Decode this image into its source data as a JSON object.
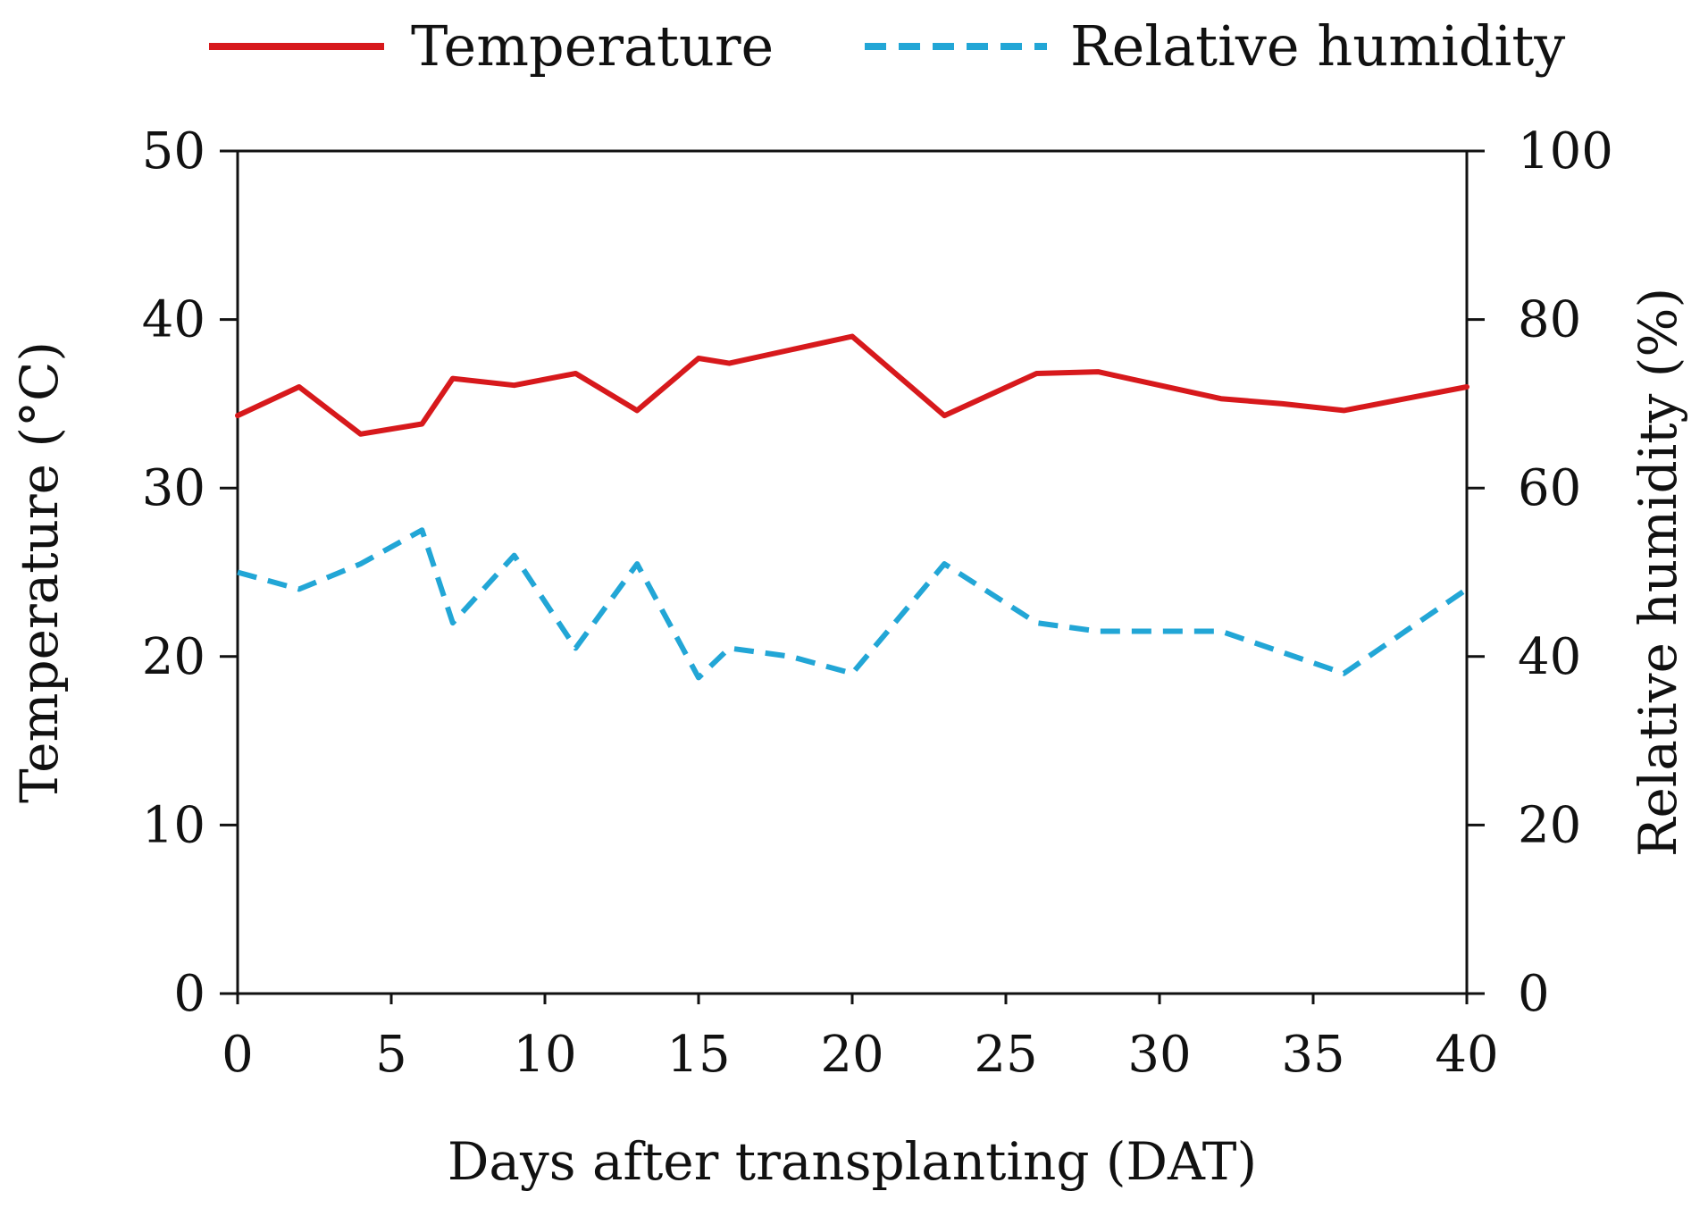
{
  "chart_data": {
    "type": "line",
    "title": "",
    "xlabel": "Days after transplanting (DAT)",
    "ylabel_left": "Temperature (°C)",
    "ylabel_right": "Relative humidity (%)",
    "xlim": [
      0,
      40
    ],
    "ylim_left": [
      0,
      50
    ],
    "ylim_right": [
      0,
      100
    ],
    "x_ticks": [
      0,
      5,
      10,
      15,
      20,
      25,
      30,
      35,
      40
    ],
    "y_left_ticks": [
      0,
      10,
      20,
      30,
      40,
      50
    ],
    "y_right_ticks": [
      0,
      20,
      40,
      60,
      80,
      100
    ],
    "grid": false,
    "legend_position": "top",
    "series": [
      {
        "name": "Temperature",
        "axis": "left",
        "color": "#d7191c",
        "style": "solid",
        "x": [
          0,
          2,
          4,
          6,
          7,
          9,
          11,
          13,
          15,
          16,
          18,
          20,
          23,
          26,
          28,
          30,
          32,
          34,
          36,
          38,
          40
        ],
        "y": [
          34.3,
          36.0,
          33.2,
          33.8,
          36.5,
          36.1,
          36.8,
          34.6,
          37.7,
          37.4,
          38.2,
          39.0,
          34.3,
          36.8,
          36.9,
          36.1,
          35.3,
          35.0,
          34.6,
          35.3,
          36.0
        ]
      },
      {
        "name": "Relative humidity",
        "axis": "right",
        "color": "#22a6d6",
        "style": "dashed",
        "x": [
          0,
          2,
          4,
          6,
          7,
          9,
          11,
          13,
          15,
          16,
          18,
          20,
          23,
          26,
          28,
          30,
          32,
          34,
          36,
          38,
          40
        ],
        "y": [
          50,
          48,
          51,
          55,
          44,
          52,
          41,
          51,
          37.5,
          41,
          40,
          38,
          51,
          44,
          43,
          43,
          43,
          40.5,
          38,
          43,
          48
        ]
      }
    ]
  }
}
